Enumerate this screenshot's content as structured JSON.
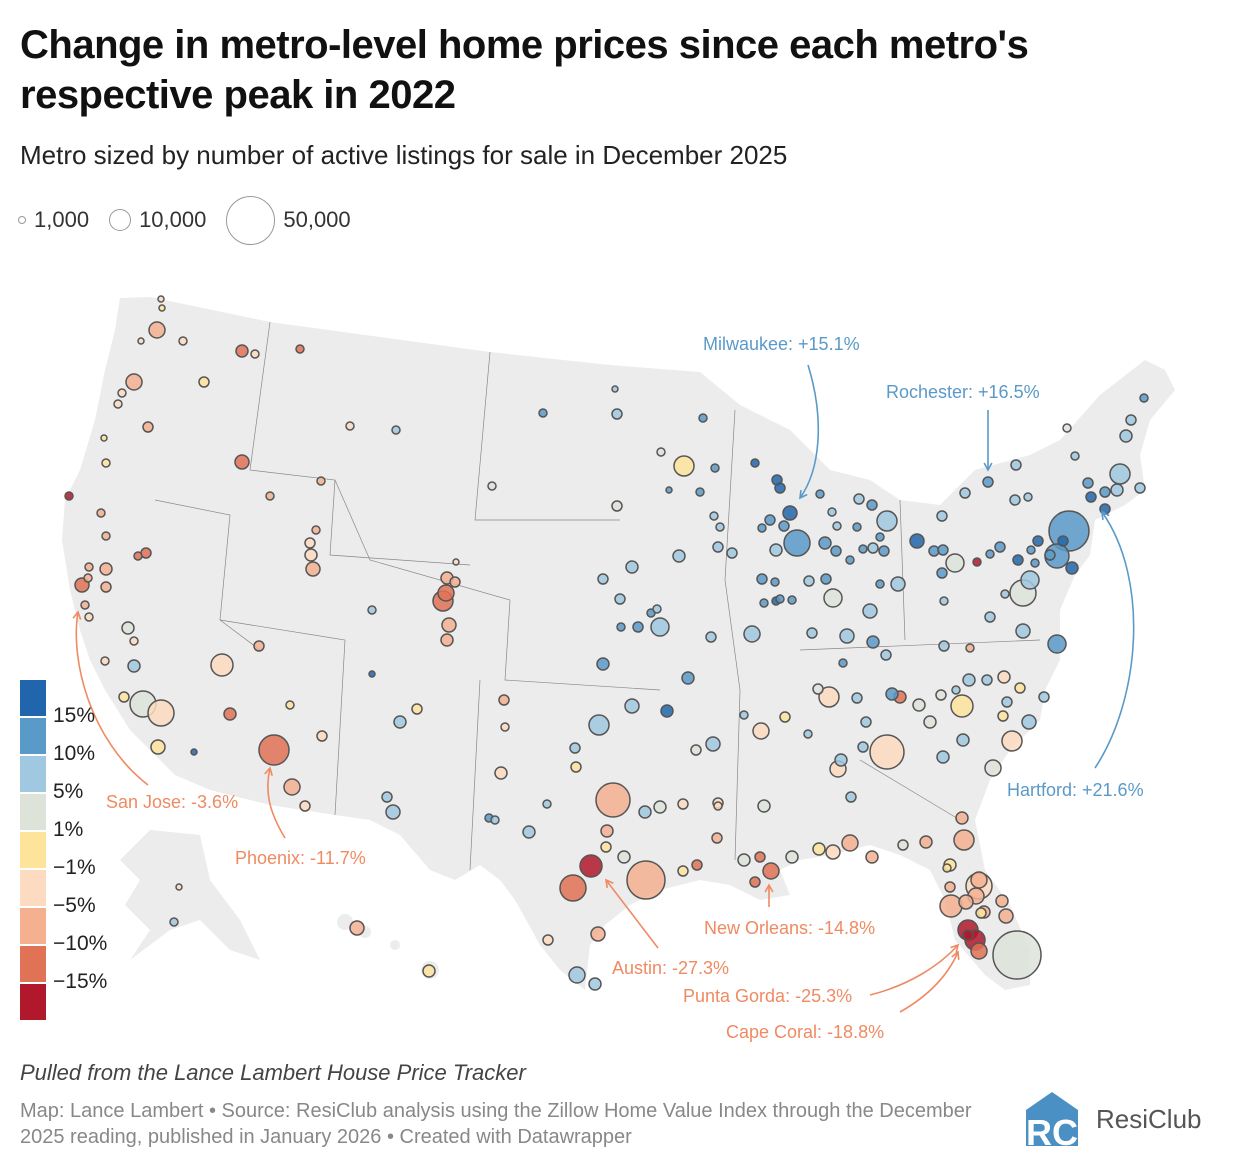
{
  "title": "Change in metro-level home prices since each metro's respective peak in 2022",
  "subtitle": "Metro sized by number of active listings for sale in December 2025",
  "size_legend": [
    {
      "label": "1,000",
      "listings": 1000
    },
    {
      "label": "10,000",
      "listings": 10000
    },
    {
      "label": "50,000",
      "listings": 50000
    }
  ],
  "color_legend": {
    "colors": [
      "#2166ac",
      "#5a9ac8",
      "#a0c8e0",
      "#dde3d9",
      "#fee39b",
      "#fddbc0",
      "#f5b090",
      "#e07255",
      "#b2182b"
    ],
    "labels": [
      "15%",
      "10%",
      "5%",
      "1%",
      "−1%",
      "−5%",
      "−10%",
      "−15%"
    ]
  },
  "annotations": [
    {
      "metro": "Milwaukee",
      "text": "Milwaukee: +15.1%",
      "change": 15.1,
      "color": "#5a9ac8"
    },
    {
      "metro": "Rochester",
      "text": "Rochester: +16.5%",
      "change": 16.5,
      "color": "#5a9ac8"
    },
    {
      "metro": "Hartford",
      "text": "Hartford: +21.6%",
      "change": 21.6,
      "color": "#5a9ac8"
    },
    {
      "metro": "San Jose",
      "text": "San Jose: -3.6%",
      "change": -3.6,
      "color": "#ef8a62"
    },
    {
      "metro": "Phoenix",
      "text": "Phoenix: -11.7%",
      "change": -11.7,
      "color": "#ef8a62"
    },
    {
      "metro": "Austin",
      "text": "Austin: -27.3%",
      "change": -27.3,
      "color": "#ef8a62"
    },
    {
      "metro": "New Orleans",
      "text": "New Orleans: -14.8%",
      "change": -14.8,
      "color": "#ef8a62"
    },
    {
      "metro": "Punta Gorda",
      "text": "Punta Gorda: -25.3%",
      "change": -25.3,
      "color": "#ef8a62"
    },
    {
      "metro": "Cape Coral",
      "text": "Cape Coral: -18.8%",
      "change": -18.8,
      "color": "#ef8a62"
    }
  ],
  "note": "Pulled from the Lance Lambert House Price Tracker",
  "source": "Map: Lance Lambert • Source: ResiClub analysis using the Zillow Home Value Index through the December 2025 reading, published in January 2026 • Created with Datawrapper",
  "logo": {
    "text": "ResiClub",
    "mark": "RC",
    "color": "#4a90c4"
  }
}
